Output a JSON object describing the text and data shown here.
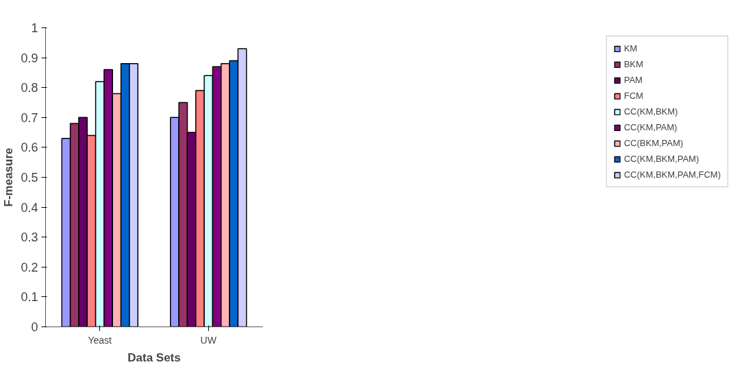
{
  "chart_data": {
    "type": "bar",
    "xlabel": "Data Sets",
    "ylabel": "F-measure",
    "categories": [
      "Yeast",
      "UW"
    ],
    "series": [
      {
        "name": "KM",
        "color": "#9999ff",
        "values": [
          0.63,
          0.7
        ]
      },
      {
        "name": "BKM",
        "color": "#993366",
        "values": [
          0.68,
          0.75
        ]
      },
      {
        "name": "PAM",
        "color": "#660066",
        "values": [
          0.7,
          0.65
        ]
      },
      {
        "name": "FCM",
        "color": "#ff8080",
        "values": [
          0.64,
          0.79
        ]
      },
      {
        "name": "CC(KM,BKM)",
        "color": "#ccffff",
        "values": [
          0.82,
          0.84
        ]
      },
      {
        "name": "CC(KM,PAM)",
        "color": "#800080",
        "values": [
          0.86,
          0.87
        ]
      },
      {
        "name": "CC(BKM,PAM)",
        "color": "#ffb3b3",
        "values": [
          0.78,
          0.88
        ]
      },
      {
        "name": "CC(KM,BKM,PAM)",
        "color": "#0066cc",
        "values": [
          0.88,
          0.89
        ]
      },
      {
        "name": "CC(KM,BKM,PAM,FCM)",
        "color": "#ccccff",
        "values": [
          0.88,
          0.93
        ]
      }
    ],
    "ylim": [
      0,
      1
    ],
    "yticks": [
      0,
      0.1,
      0.2,
      0.3,
      0.4,
      0.5,
      0.6,
      0.7,
      0.8,
      0.9,
      1
    ],
    "grid": false,
    "legend": "right"
  }
}
